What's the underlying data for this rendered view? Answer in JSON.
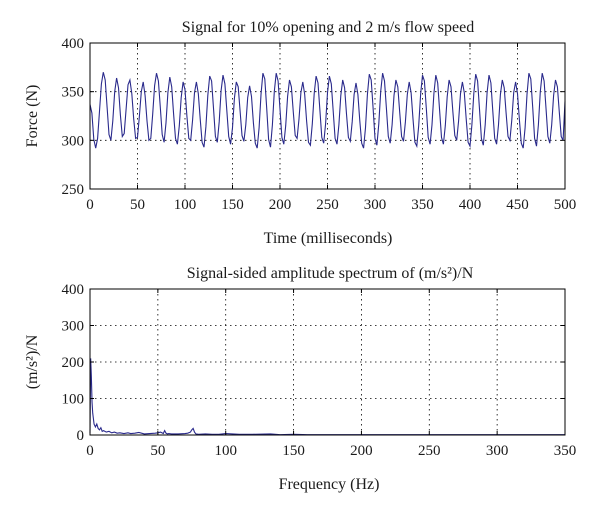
{
  "chart_data": [
    {
      "type": "line",
      "title": "Signal for 10% opening and 2 m/s flow speed",
      "xlabel": "Time (milliseconds)",
      "ylabel": "Force (N)",
      "xlim": [
        0,
        500
      ],
      "ylim": [
        250,
        400
      ],
      "xticks": [
        0,
        50,
        100,
        150,
        200,
        250,
        300,
        350,
        400,
        450,
        500
      ],
      "yticks": [
        250,
        300,
        350,
        400
      ],
      "grid": true,
      "series": [
        {
          "color": "#2a2a8c",
          "x": [
            0,
            2,
            4,
            6,
            8,
            10,
            12,
            14,
            16,
            18,
            20,
            22,
            24,
            26,
            28,
            30,
            32,
            34,
            36,
            38,
            40,
            42,
            44,
            46,
            48,
            50,
            52,
            54,
            56,
            58,
            60,
            62,
            64,
            66,
            68,
            70,
            72,
            74,
            76,
            78,
            80,
            82,
            84,
            86,
            88,
            90,
            92,
            94,
            96,
            98,
            100,
            102,
            104,
            106,
            108,
            110,
            112,
            114,
            116,
            118,
            120,
            122,
            124,
            126,
            128,
            130,
            132,
            134,
            136,
            138,
            140,
            142,
            144,
            146,
            148,
            150,
            152,
            154,
            156,
            158,
            160,
            162,
            164,
            166,
            168,
            170,
            172,
            174,
            176,
            178,
            180,
            182,
            184,
            186,
            188,
            190,
            192,
            194,
            196,
            198,
            200,
            202,
            204,
            206,
            208,
            210,
            212,
            214,
            216,
            218,
            220,
            222,
            224,
            226,
            228,
            230,
            232,
            234,
            236,
            238,
            240,
            242,
            244,
            246,
            248,
            250,
            252,
            254,
            256,
            258,
            260,
            262,
            264,
            266,
            268,
            270,
            272,
            274,
            276,
            278,
            280,
            282,
            284,
            286,
            288,
            290,
            292,
            294,
            296,
            298,
            300,
            302,
            304,
            306,
            308,
            310,
            312,
            314,
            316,
            318,
            320,
            322,
            324,
            326,
            328,
            330,
            332,
            334,
            336,
            338,
            340,
            342,
            344,
            346,
            348,
            350,
            352,
            354,
            356,
            358,
            360,
            362,
            364,
            366,
            368,
            370,
            372,
            374,
            376,
            378,
            380,
            382,
            384,
            386,
            388,
            390,
            392,
            394,
            396,
            398,
            400,
            402,
            404,
            406,
            408,
            410,
            412,
            414,
            416,
            418,
            420,
            422,
            424,
            426,
            428,
            430,
            432,
            434,
            436,
            438,
            440,
            442,
            444,
            446,
            448,
            450,
            452,
            454,
            456,
            458,
            460,
            462,
            464,
            466,
            468,
            470,
            472,
            474,
            476,
            478,
            480,
            482,
            484,
            486,
            488,
            490,
            492,
            494,
            496,
            498,
            500
          ],
          "y": [
            337,
            328,
            301,
            292,
            302,
            330,
            358,
            370,
            362,
            334,
            306,
            300,
            320,
            350,
            364,
            354,
            326,
            304,
            307,
            332,
            357,
            362,
            348,
            322,
            302,
            303,
            325,
            350,
            360,
            346,
            320,
            300,
            302,
            327,
            356,
            369,
            361,
            334,
            306,
            298,
            318,
            349,
            365,
            355,
            327,
            302,
            296,
            315,
            344,
            360,
            352,
            325,
            302,
            300,
            321,
            349,
            360,
            348,
            322,
            298,
            293,
            314,
            346,
            366,
            361,
            333,
            304,
            298,
            319,
            351,
            367,
            358,
            331,
            304,
            296,
            313,
            343,
            360,
            355,
            330,
            305,
            299,
            316,
            344,
            356,
            345,
            318,
            297,
            292,
            313,
            347,
            369,
            363,
            333,
            301,
            293,
            316,
            350,
            369,
            361,
            332,
            303,
            296,
            315,
            345,
            362,
            355,
            329,
            305,
            302,
            322,
            349,
            360,
            347,
            320,
            298,
            295,
            317,
            348,
            366,
            359,
            331,
            303,
            297,
            317,
            349,
            366,
            358,
            330,
            302,
            296,
            316,
            346,
            362,
            354,
            327,
            303,
            299,
            319,
            347,
            359,
            347,
            320,
            297,
            292,
            313,
            347,
            368,
            362,
            333,
            302,
            295,
            317,
            350,
            369,
            361,
            333,
            304,
            297,
            316,
            346,
            362,
            355,
            329,
            304,
            299,
            319,
            347,
            360,
            349,
            322,
            298,
            294,
            315,
            347,
            367,
            361,
            333,
            303,
            296,
            316,
            348,
            367,
            359,
            331,
            303,
            296,
            315,
            345,
            362,
            355,
            329,
            305,
            300,
            320,
            348,
            360,
            349,
            322,
            298,
            294,
            316,
            348,
            368,
            361,
            332,
            302,
            295,
            316,
            349,
            367,
            359,
            330,
            302,
            296,
            316,
            347,
            362,
            354,
            328,
            304,
            300,
            321,
            349,
            360,
            348,
            321,
            297,
            292,
            313,
            347,
            369,
            363,
            334,
            302,
            294,
            316,
            350,
            369,
            361,
            333,
            304,
            297,
            316,
            346,
            362,
            355,
            329,
            304,
            300,
            340
          ]
        }
      ]
    },
    {
      "type": "line",
      "title": "Signal-sided amplitude spectrum of (m/s²)/N",
      "xlabel": "Frequency (Hz)",
      "ylabel": "(m/s²)/N",
      "xlim": [
        0,
        350
      ],
      "ylim": [
        0,
        400
      ],
      "xticks": [
        0,
        50,
        100,
        150,
        200,
        250,
        300,
        350
      ],
      "yticks": [
        0,
        100,
        200,
        300,
        400
      ],
      "grid": true,
      "series": [
        {
          "color": "#2a2a8c",
          "x": [
            0,
            0.5,
            1,
            1.5,
            2,
            2.5,
            3,
            4,
            5,
            6,
            7,
            8,
            9,
            10,
            12,
            14,
            16,
            18,
            20,
            22,
            25,
            28,
            30,
            33,
            36,
            40,
            44,
            48,
            50,
            52,
            54,
            55,
            56,
            57,
            58,
            60,
            65,
            70,
            72,
            74,
            75,
            76,
            77,
            78,
            80,
            85,
            90,
            95,
            100,
            110,
            120,
            133,
            140,
            150,
            160,
            180,
            200,
            220,
            250,
            280,
            300,
            320,
            350
          ],
          "y": [
            5,
            210,
            160,
            90,
            60,
            45,
            30,
            22,
            30,
            18,
            14,
            20,
            10,
            12,
            8,
            10,
            6,
            8,
            5,
            6,
            4,
            6,
            4,
            5,
            7,
            3,
            4,
            5,
            6,
            8,
            4,
            12,
            5,
            3,
            4,
            3,
            3,
            4,
            5,
            8,
            14,
            18,
            8,
            3,
            2,
            3,
            2,
            2,
            4,
            2,
            2,
            3,
            1,
            2,
            1,
            1,
            1,
            1,
            1,
            1,
            1,
            1,
            1
          ]
        }
      ]
    }
  ]
}
